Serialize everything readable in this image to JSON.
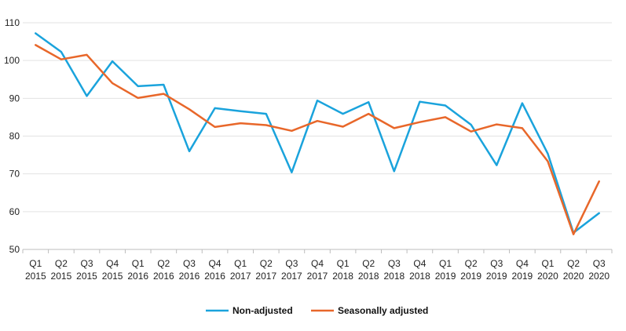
{
  "chart_data": {
    "type": "line",
    "title": "",
    "xlabel": "",
    "ylabel": "",
    "categories": [
      [
        "Q1",
        "2015"
      ],
      [
        "Q2",
        "2015"
      ],
      [
        "Q3",
        "2015"
      ],
      [
        "Q4",
        "2015"
      ],
      [
        "Q1",
        "2016"
      ],
      [
        "Q2",
        "2016"
      ],
      [
        "Q3",
        "2016"
      ],
      [
        "Q4",
        "2016"
      ],
      [
        "Q1",
        "2017"
      ],
      [
        "Q2",
        "2017"
      ],
      [
        "Q3",
        "2017"
      ],
      [
        "Q4",
        "2017"
      ],
      [
        "Q1",
        "2018"
      ],
      [
        "Q2",
        "2018"
      ],
      [
        "Q3",
        "2018"
      ],
      [
        "Q4",
        "2018"
      ],
      [
        "Q1",
        "2019"
      ],
      [
        "Q2",
        "2019"
      ],
      [
        "Q3",
        "2019"
      ],
      [
        "Q4",
        "2019"
      ],
      [
        "Q1",
        "2020"
      ],
      [
        "Q2",
        "2020"
      ],
      [
        "Q3",
        "2020"
      ]
    ],
    "ylim": [
      50,
      110
    ],
    "yticks": [
      50,
      60,
      70,
      80,
      90,
      100,
      110
    ],
    "grid": true,
    "legend_position": "bottom",
    "series": [
      {
        "name": "Non-adjusted",
        "color": "#1aa3dc",
        "values": [
          107.2,
          102.3,
          90.6,
          99.8,
          93.2,
          93.6,
          76.0,
          87.4,
          86.6,
          85.9,
          70.4,
          89.4,
          85.9,
          89.0,
          70.7,
          89.1,
          88.1,
          83.0,
          72.3,
          88.7,
          75.3,
          54.4,
          59.6
        ]
      },
      {
        "name": "Seasonally adjusted",
        "color": "#e8672a",
        "values": [
          104.1,
          100.3,
          101.5,
          94.0,
          90.1,
          91.2,
          87.1,
          82.4,
          83.4,
          82.9,
          81.4,
          84.0,
          82.5,
          85.9,
          82.1,
          83.7,
          85.0,
          81.2,
          83.1,
          82.1,
          73.3,
          54.0,
          68.0
        ]
      }
    ]
  }
}
